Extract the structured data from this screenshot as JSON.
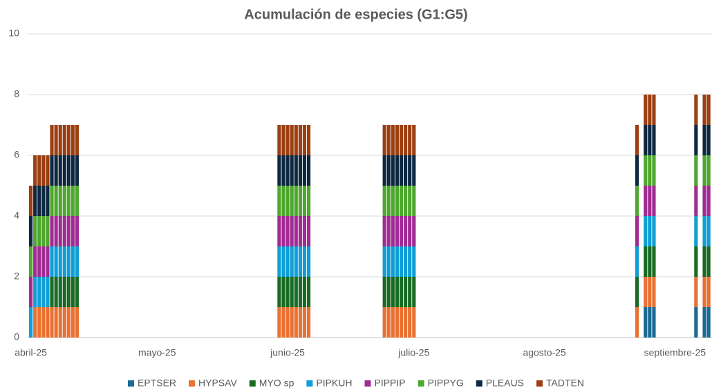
{
  "chart_data": {
    "type": "bar",
    "stacked": true,
    "title": "Acumulación de especies (G1:G5)",
    "x": [
      0,
      1,
      2,
      3,
      4,
      5,
      6,
      7,
      8,
      9,
      10,
      11,
      59,
      60,
      61,
      62,
      63,
      64,
      65,
      66,
      84,
      85,
      86,
      87,
      88,
      89,
      90,
      91,
      144,
      146,
      147,
      148,
      158,
      160,
      161
    ],
    "xlim": [
      -0.75,
      161.8
    ],
    "xticks": [
      {
        "value": 0,
        "label": "abril-25"
      },
      {
        "value": 30,
        "label": "mayo-25"
      },
      {
        "value": 61,
        "label": "junio-25"
      },
      {
        "value": 91,
        "label": "julio-25"
      },
      {
        "value": 122,
        "label": "agosto-25"
      },
      {
        "value": 153,
        "label": "septiembre-25"
      }
    ],
    "ylim": [
      0,
      10
    ],
    "yticks": [
      0,
      2,
      4,
      6,
      8,
      10
    ],
    "grid": true,
    "legend": "bottom",
    "series": [
      {
        "name": "EPTSER",
        "color": "#196b94",
        "values": [
          0,
          0,
          0,
          0,
          0,
          0,
          0,
          0,
          0,
          0,
          0,
          0,
          0,
          0,
          0,
          0,
          0,
          0,
          0,
          0,
          0,
          0,
          0,
          0,
          0,
          0,
          0,
          0,
          0,
          1,
          1,
          1,
          1,
          1,
          1
        ]
      },
      {
        "name": "HYPSAV",
        "color": "#e97132",
        "values": [
          0,
          1,
          1,
          1,
          1,
          1,
          1,
          1,
          1,
          1,
          1,
          1,
          1,
          1,
          1,
          1,
          1,
          1,
          1,
          1,
          1,
          1,
          1,
          1,
          1,
          1,
          1,
          1,
          1,
          1,
          1,
          1,
          1,
          1,
          1
        ]
      },
      {
        "name": "MYO sp",
        "color": "#196b24",
        "values": [
          0,
          0,
          0,
          0,
          0,
          1,
          1,
          1,
          1,
          1,
          1,
          1,
          1,
          1,
          1,
          1,
          1,
          1,
          1,
          1,
          1,
          1,
          1,
          1,
          1,
          1,
          1,
          1,
          1,
          1,
          1,
          1,
          1,
          1,
          1
        ]
      },
      {
        "name": "PIPKUH",
        "color": "#0f9ed5",
        "values": [
          1,
          1,
          1,
          1,
          1,
          1,
          1,
          1,
          1,
          1,
          1,
          1,
          1,
          1,
          1,
          1,
          1,
          1,
          1,
          1,
          1,
          1,
          1,
          1,
          1,
          1,
          1,
          1,
          1,
          1,
          1,
          1,
          1,
          1,
          1
        ]
      },
      {
        "name": "PIPPIP",
        "color": "#a02b93",
        "values": [
          1,
          1,
          1,
          1,
          1,
          1,
          1,
          1,
          1,
          1,
          1,
          1,
          1,
          1,
          1,
          1,
          1,
          1,
          1,
          1,
          1,
          1,
          1,
          1,
          1,
          1,
          1,
          1,
          1,
          1,
          1,
          1,
          1,
          1,
          1
        ]
      },
      {
        "name": "PIPPYG",
        "color": "#4ea72e",
        "values": [
          1,
          1,
          1,
          1,
          1,
          1,
          1,
          1,
          1,
          1,
          1,
          1,
          1,
          1,
          1,
          1,
          1,
          1,
          1,
          1,
          1,
          1,
          1,
          1,
          1,
          1,
          1,
          1,
          1,
          1,
          1,
          1,
          1,
          1,
          1
        ]
      },
      {
        "name": "PLEAUS",
        "color": "#0e2841",
        "values": [
          1,
          1,
          1,
          1,
          1,
          1,
          1,
          1,
          1,
          1,
          1,
          1,
          1,
          1,
          1,
          1,
          1,
          1,
          1,
          1,
          1,
          1,
          1,
          1,
          1,
          1,
          1,
          1,
          1,
          1,
          1,
          1,
          1,
          1,
          1
        ]
      },
      {
        "name": "TADTEN",
        "color": "#9b3f12",
        "values": [
          1,
          1,
          1,
          1,
          1,
          1,
          1,
          1,
          1,
          1,
          1,
          1,
          1,
          1,
          1,
          1,
          1,
          1,
          1,
          1,
          1,
          1,
          1,
          1,
          1,
          1,
          1,
          1,
          1,
          1,
          1,
          1,
          1,
          1,
          1
        ]
      }
    ]
  }
}
